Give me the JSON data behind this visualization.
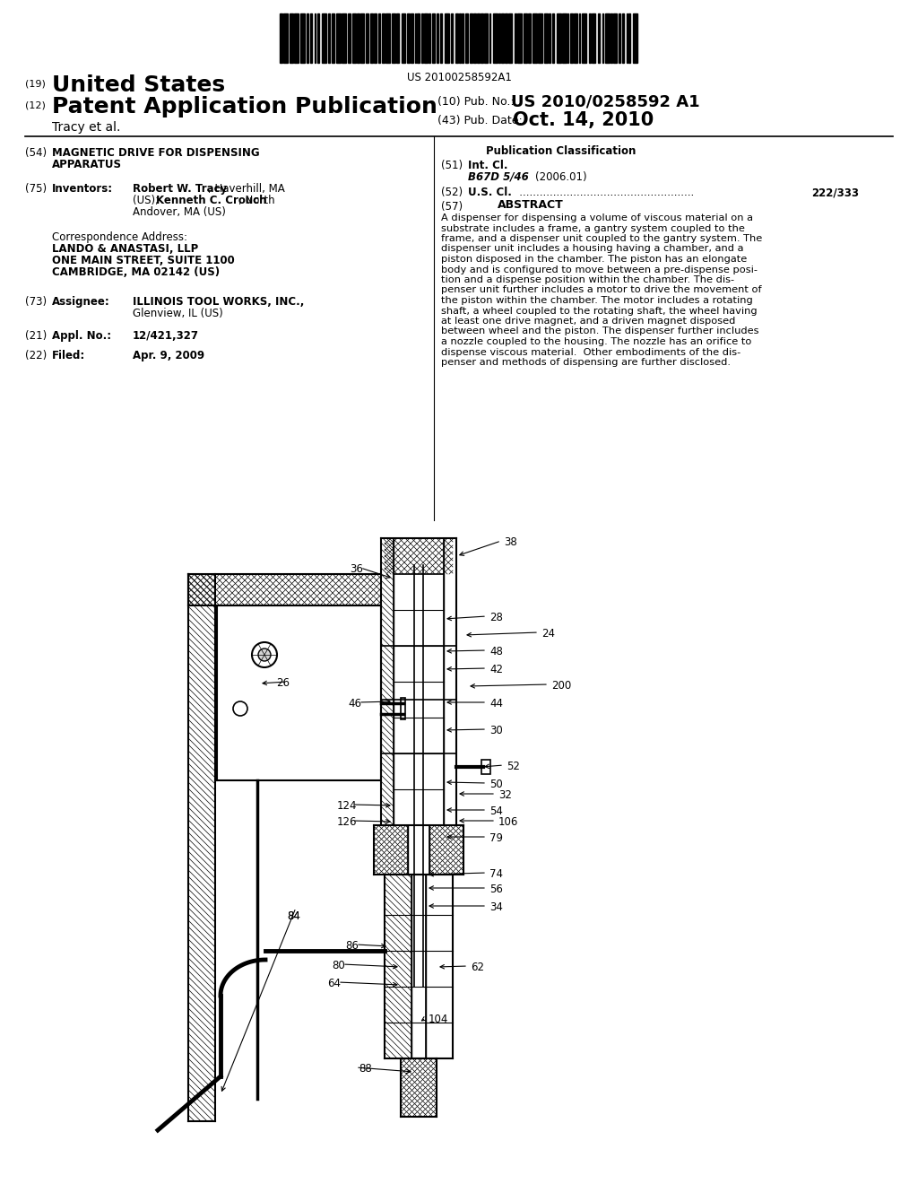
{
  "background_color": "#ffffff",
  "barcode_text": "US 20100258592A1",
  "pub_no_full": "US 2010/0258592 A1",
  "pub_date": "Oct. 14, 2010",
  "author_line": "Tracy et al.",
  "abstract_text": "A dispenser for dispensing a volume of viscous material on a substrate includes a frame, a gantry system coupled to the frame, and a dispenser unit coupled to the gantry system. The dispenser unit includes a housing having a chamber, and a piston disposed in the chamber. The piston has an elongate body and is configured to move between a pre-dispense position and a dispense position within the chamber. The dis-penser unit further includes a motor to drive the movement of the piston within the chamber. The motor includes a rotating shaft, a wheel coupled to the rotating shaft, the wheel having at least one drive magnet, and a driven magnet disposed between wheel and the piston. The dispenser further includes a nozzle coupled to the housing. The nozzle has an orifice to dispense viscous material. Other embodiments of the dis-penser and methods of dispensing are further disclosed."
}
